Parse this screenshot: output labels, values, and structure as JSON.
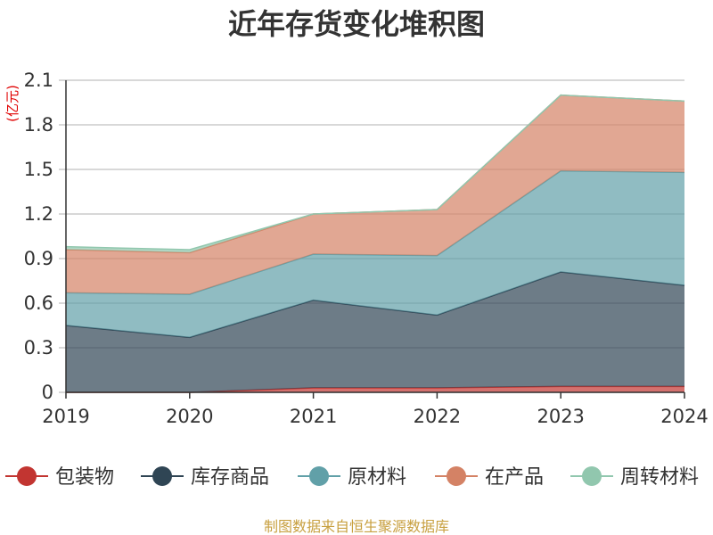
{
  "chart_data": {
    "type": "area",
    "stacked": true,
    "title": "近年存货变化堆积图",
    "unit_label": "(亿元)",
    "x": [
      "2019",
      "2020",
      "2021",
      "2022",
      "2023",
      "2024"
    ],
    "ylim": [
      0,
      2.1
    ],
    "yticks": [
      "0",
      "0.3",
      "0.6",
      "0.9",
      "1.2",
      "1.5",
      "1.8",
      "2.1"
    ],
    "grid": true,
    "legend_position": "bottom",
    "series": [
      {
        "name": "包装物",
        "color": "#c23531",
        "values": [
          0.0,
          0.0,
          0.03,
          0.03,
          0.04,
          0.04
        ]
      },
      {
        "name": "库存商品",
        "color": "#2f4554",
        "values": [
          0.45,
          0.37,
          0.59,
          0.49,
          0.77,
          0.68
        ]
      },
      {
        "name": "原材料",
        "color": "#61a0a8",
        "values": [
          0.22,
          0.29,
          0.31,
          0.4,
          0.68,
          0.76
        ]
      },
      {
        "name": "在产品",
        "color": "#d48265",
        "values": [
          0.29,
          0.28,
          0.27,
          0.31,
          0.51,
          0.48
        ]
      },
      {
        "name": "周转材料",
        "color": "#91c7ae",
        "values": [
          0.02,
          0.02,
          0.0,
          0.0,
          0.0,
          0.0
        ]
      }
    ]
  },
  "source_text": "制图数据来自恒生聚源数据库"
}
